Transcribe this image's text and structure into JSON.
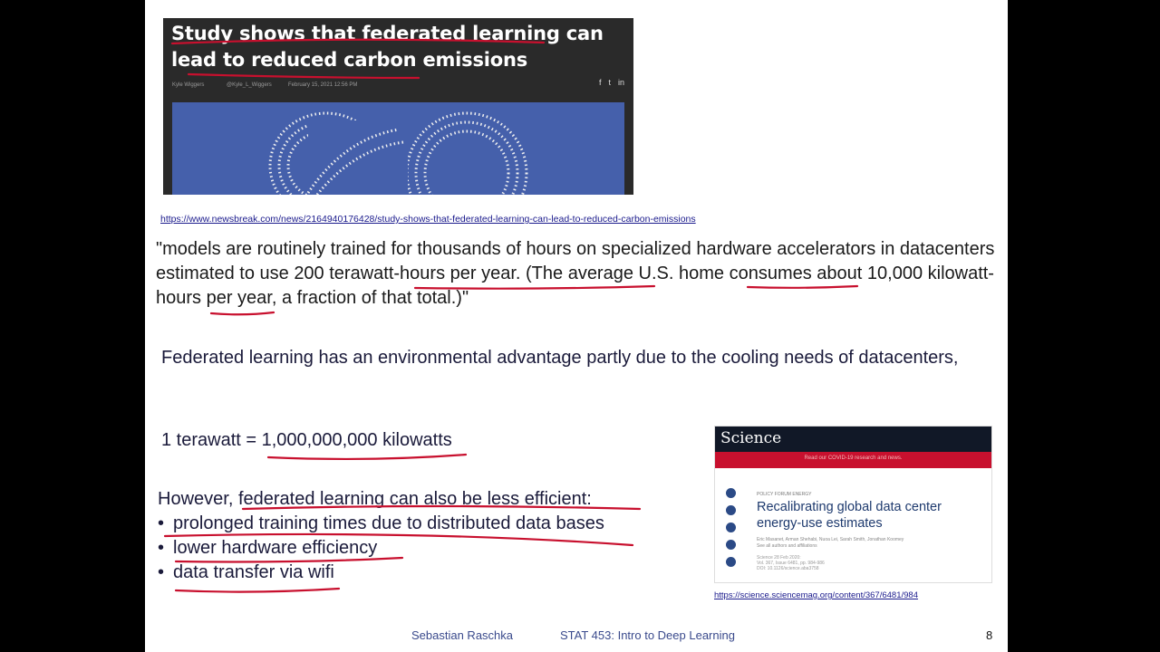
{
  "article": {
    "headline": "Study shows that federated learning can lead to reduced carbon emissions",
    "author": "Kyle Wiggers",
    "handle": "@Kyle_L_Wiggers",
    "date": "February 15, 2021 12:56 PM",
    "share": [
      "f",
      "t",
      "in"
    ],
    "url": "https://www.newsbreak.com/news/2164940176428/study-shows-that-federated-learning-can-lead-to-reduced-carbon-emissions"
  },
  "quote": {
    "before": "\"models are routinely trained for thousands of hours on specialized hardware accelerators in datacenters estimated to use ",
    "hl1": "200 terawatt-hours per year.",
    "mid1": " (The average ",
    "hl2": "U.S. home",
    "mid2": " consumes about ",
    "hl3": "10,000",
    "after": " kilowatt-hours per year, a fraction of that total.)\""
  },
  "fed_text": "Federated learning has an environmental advantage partly due to the cooling needs of datacenters,",
  "conversion": {
    "left": "1 terawatt = ",
    "value": "1,000,000,000 kilowatts"
  },
  "however": {
    "prefix": "However, ",
    "text": "federated learning can also be less efficient",
    "suffix": ":"
  },
  "bullets": [
    "prolonged training times due to distributed data bases",
    "lower hardware efficiency",
    "data transfer via wifi"
  ],
  "science": {
    "logo": "Science",
    "banner": "Read our COVID-19 research and news.",
    "kicker": "POLICY FORUM   ENERGY",
    "title": "Recalibrating global data center energy-use estimates",
    "authors": "Eric Masanet, Arman Shehabi, Nuoa Lei, Sarah Smith, Jonathan Koomey",
    "authors_note": "See all authors and affiliations",
    "pub_line1": "Science 28 Feb 2020:",
    "pub_line2": "Vol. 367, Issue 6481, pp. 984-986",
    "pub_line3": "DOI: 10.1126/science.aba3758",
    "url": "https://science.sciencemag.org/content/367/6481/984"
  },
  "footer": {
    "author": "Sebastian Raschka",
    "course": "STAT 453: Intro to Deep Learning",
    "page": "8"
  },
  "colors": {
    "annotation_red": "#c8102e",
    "text_blue": "#1a1a3a"
  }
}
